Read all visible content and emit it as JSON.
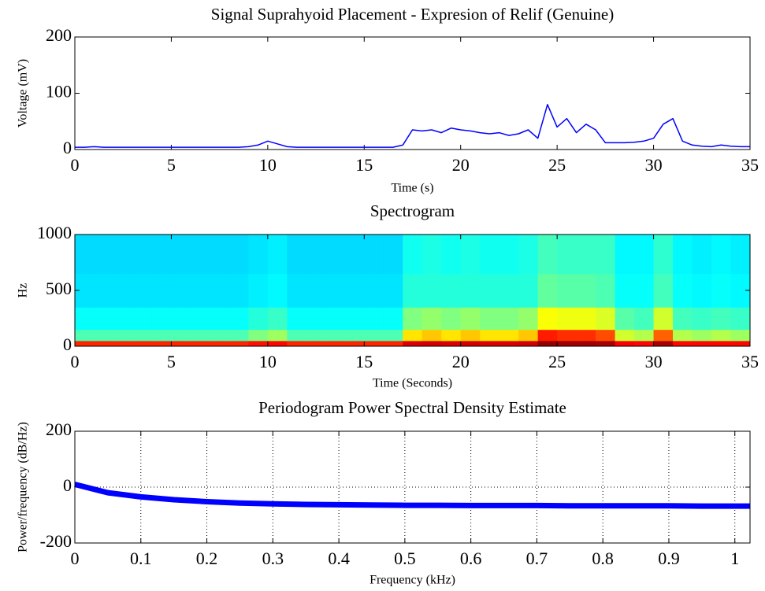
{
  "chart_data": [
    {
      "type": "line",
      "title": "Signal Suprahyoid Placement - Expresion of Relif (Genuine)",
      "xlabel": "Time (s)",
      "ylabel": "Voltage (mV)",
      "xlim": [
        0,
        35
      ],
      "xticks": [
        0,
        5,
        10,
        15,
        20,
        25,
        30,
        35
      ],
      "ylim": [
        0,
        200
      ],
      "yticks": [
        0,
        100,
        200
      ],
      "grid": false,
      "x": [
        0,
        0.5,
        1,
        1.5,
        2,
        2.5,
        3,
        3.5,
        4,
        4.5,
        5,
        5.5,
        6,
        6.5,
        7,
        7.5,
        8,
        8.5,
        9,
        9.5,
        10,
        10.5,
        11,
        11.5,
        12,
        12.5,
        13,
        13.5,
        14,
        14.5,
        15,
        15.5,
        16,
        16.5,
        17,
        17.5,
        18,
        18.5,
        19,
        19.5,
        20,
        20.5,
        21,
        21.5,
        22,
        22.5,
        23,
        23.5,
        24,
        24.5,
        25,
        25.5,
        26,
        26.5,
        27,
        27.5,
        28,
        28.5,
        29,
        29.5,
        30,
        30.5,
        31,
        31.5,
        32,
        32.5,
        33,
        33.5,
        34,
        34.5,
        35
      ],
      "series": [
        {
          "color": "#0000ff",
          "values": [
            4,
            4,
            5,
            4,
            4,
            4,
            4,
            4,
            4,
            4,
            4,
            4,
            4,
            4,
            4,
            4,
            4,
            4,
            5,
            8,
            15,
            10,
            5,
            4,
            4,
            4,
            4,
            4,
            4,
            4,
            4,
            4,
            4,
            4,
            8,
            35,
            33,
            35,
            30,
            38,
            35,
            33,
            30,
            28,
            30,
            25,
            28,
            35,
            20,
            80,
            40,
            55,
            30,
            45,
            35,
            12,
            12,
            12,
            13,
            15,
            20,
            45,
            55,
            15,
            8,
            6,
            5,
            8,
            6,
            5,
            5
          ]
        }
      ]
    },
    {
      "type": "heatmap",
      "title": "Spectrogram",
      "xlabel": "Time (Seconds)",
      "ylabel": "Hz",
      "xlim": [
        0,
        35
      ],
      "xticks": [
        0,
        5,
        10,
        15,
        20,
        25,
        30,
        35
      ],
      "ylim": [
        0,
        1000
      ],
      "yticks": [
        0,
        500,
        1000
      ],
      "colormap": "jet",
      "zlim": [
        0,
        1
      ],
      "xbins": [
        0,
        1,
        2,
        3,
        4,
        5,
        6,
        7,
        8,
        9,
        10,
        11,
        12,
        13,
        14,
        15,
        16,
        17,
        18,
        19,
        20,
        21,
        22,
        23,
        24,
        25,
        26,
        27,
        28,
        29,
        30,
        31,
        32,
        33,
        34,
        35
      ],
      "ybins": [
        0,
        50,
        150,
        350,
        650,
        1000
      ],
      "z": [
        [
          0.84,
          0.84,
          0.84,
          0.84,
          0.84,
          0.84,
          0.84,
          0.84,
          0.84,
          0.86,
          0.87,
          0.84,
          0.84,
          0.84,
          0.84,
          0.84,
          0.84,
          0.91,
          0.92,
          0.91,
          0.92,
          0.91,
          0.91,
          0.92,
          0.98,
          0.97,
          0.97,
          0.96,
          0.88,
          0.87,
          0.96,
          0.87,
          0.87,
          0.87,
          0.87
        ],
        [
          0.45,
          0.45,
          0.45,
          0.45,
          0.45,
          0.45,
          0.45,
          0.45,
          0.45,
          0.5,
          0.53,
          0.45,
          0.45,
          0.45,
          0.45,
          0.45,
          0.45,
          0.65,
          0.68,
          0.65,
          0.68,
          0.65,
          0.65,
          0.68,
          0.85,
          0.83,
          0.83,
          0.8,
          0.58,
          0.55,
          0.78,
          0.55,
          0.53,
          0.55,
          0.53
        ],
        [
          0.38,
          0.38,
          0.38,
          0.38,
          0.38,
          0.38,
          0.38,
          0.38,
          0.38,
          0.41,
          0.43,
          0.38,
          0.38,
          0.38,
          0.38,
          0.38,
          0.38,
          0.5,
          0.52,
          0.5,
          0.52,
          0.5,
          0.5,
          0.52,
          0.62,
          0.61,
          0.61,
          0.59,
          0.46,
          0.44,
          0.58,
          0.44,
          0.43,
          0.44,
          0.43
        ],
        [
          0.35,
          0.35,
          0.35,
          0.35,
          0.35,
          0.35,
          0.35,
          0.35,
          0.35,
          0.36,
          0.37,
          0.35,
          0.35,
          0.35,
          0.35,
          0.35,
          0.35,
          0.41,
          0.41,
          0.41,
          0.41,
          0.41,
          0.41,
          0.41,
          0.47,
          0.46,
          0.46,
          0.45,
          0.38,
          0.38,
          0.44,
          0.38,
          0.37,
          0.38,
          0.37
        ],
        [
          0.34,
          0.34,
          0.34,
          0.34,
          0.34,
          0.34,
          0.34,
          0.34,
          0.34,
          0.35,
          0.36,
          0.34,
          0.34,
          0.34,
          0.34,
          0.34,
          0.34,
          0.39,
          0.4,
          0.39,
          0.4,
          0.39,
          0.39,
          0.4,
          0.44,
          0.43,
          0.43,
          0.43,
          0.37,
          0.37,
          0.42,
          0.37,
          0.36,
          0.37,
          0.36
        ]
      ]
    },
    {
      "type": "line",
      "title": "Periodogram Power Spectral Density Estimate",
      "xlabel": "Frequency (kHz)",
      "ylabel": "Power/frequency (dB/Hz)",
      "xlim": [
        0,
        1.023
      ],
      "xticks": [
        0,
        0.1,
        0.2,
        0.3,
        0.4,
        0.5,
        0.6,
        0.7,
        0.8,
        0.9,
        1
      ],
      "ylim": [
        -200,
        200
      ],
      "yticks": [
        -200,
        0,
        200
      ],
      "grid": true,
      "x": [
        0,
        0.05,
        0.1,
        0.15,
        0.2,
        0.25,
        0.3,
        0.35,
        0.4,
        0.45,
        0.5,
        0.55,
        0.6,
        0.65,
        0.7,
        0.75,
        0.8,
        0.85,
        0.9,
        0.95,
        1,
        1.023
      ],
      "series": [
        {
          "color": "#0000ff",
          "values": [
            10,
            -20,
            -35,
            -45,
            -52,
            -57,
            -60,
            -62,
            -63,
            -64,
            -65,
            -65,
            -66,
            -66,
            -66,
            -67,
            -67,
            -67,
            -67,
            -68,
            -68,
            -68
          ]
        }
      ]
    }
  ]
}
